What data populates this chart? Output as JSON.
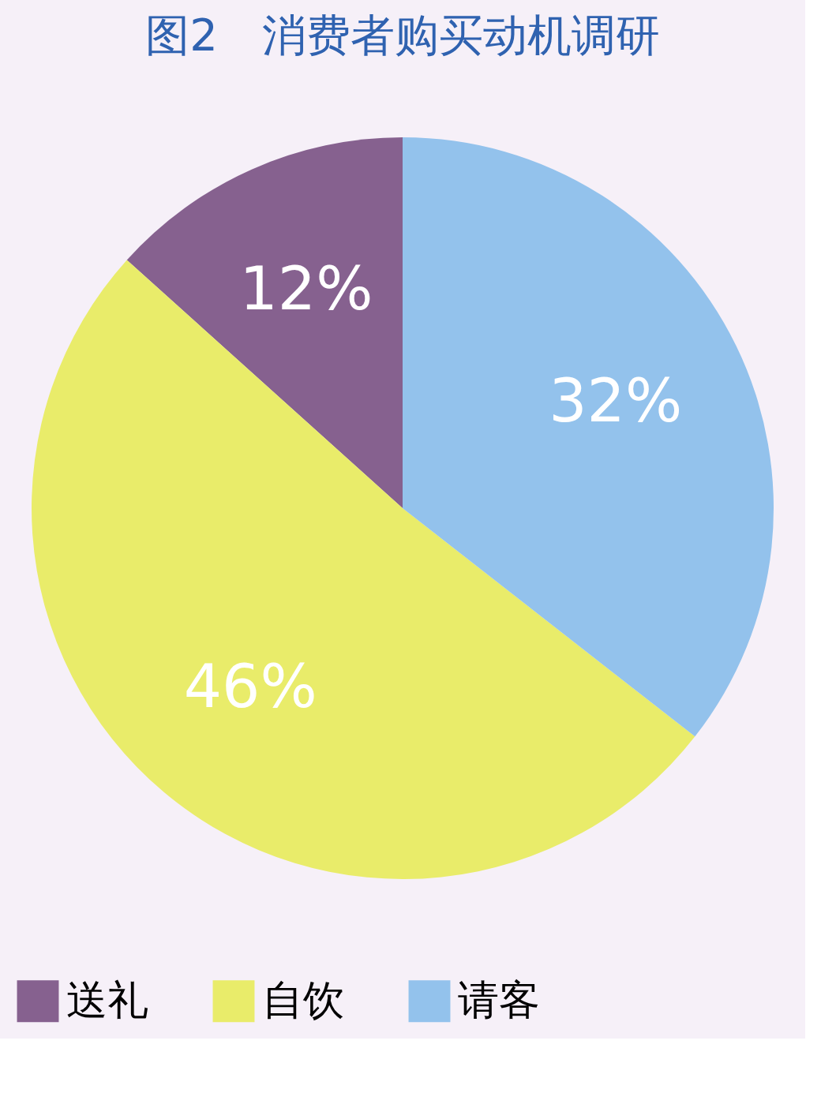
{
  "chart_data": {
    "type": "pie",
    "title": "图2　消费者购买动机调研",
    "categories": [
      "送礼",
      "自饮",
      "请客"
    ],
    "values": [
      12,
      46,
      32
    ],
    "colors": [
      "#86618f",
      "#e9ec6a",
      "#93c2ec"
    ],
    "value_labels": [
      "12%",
      "46%",
      "32%"
    ],
    "legend": "bottom"
  }
}
